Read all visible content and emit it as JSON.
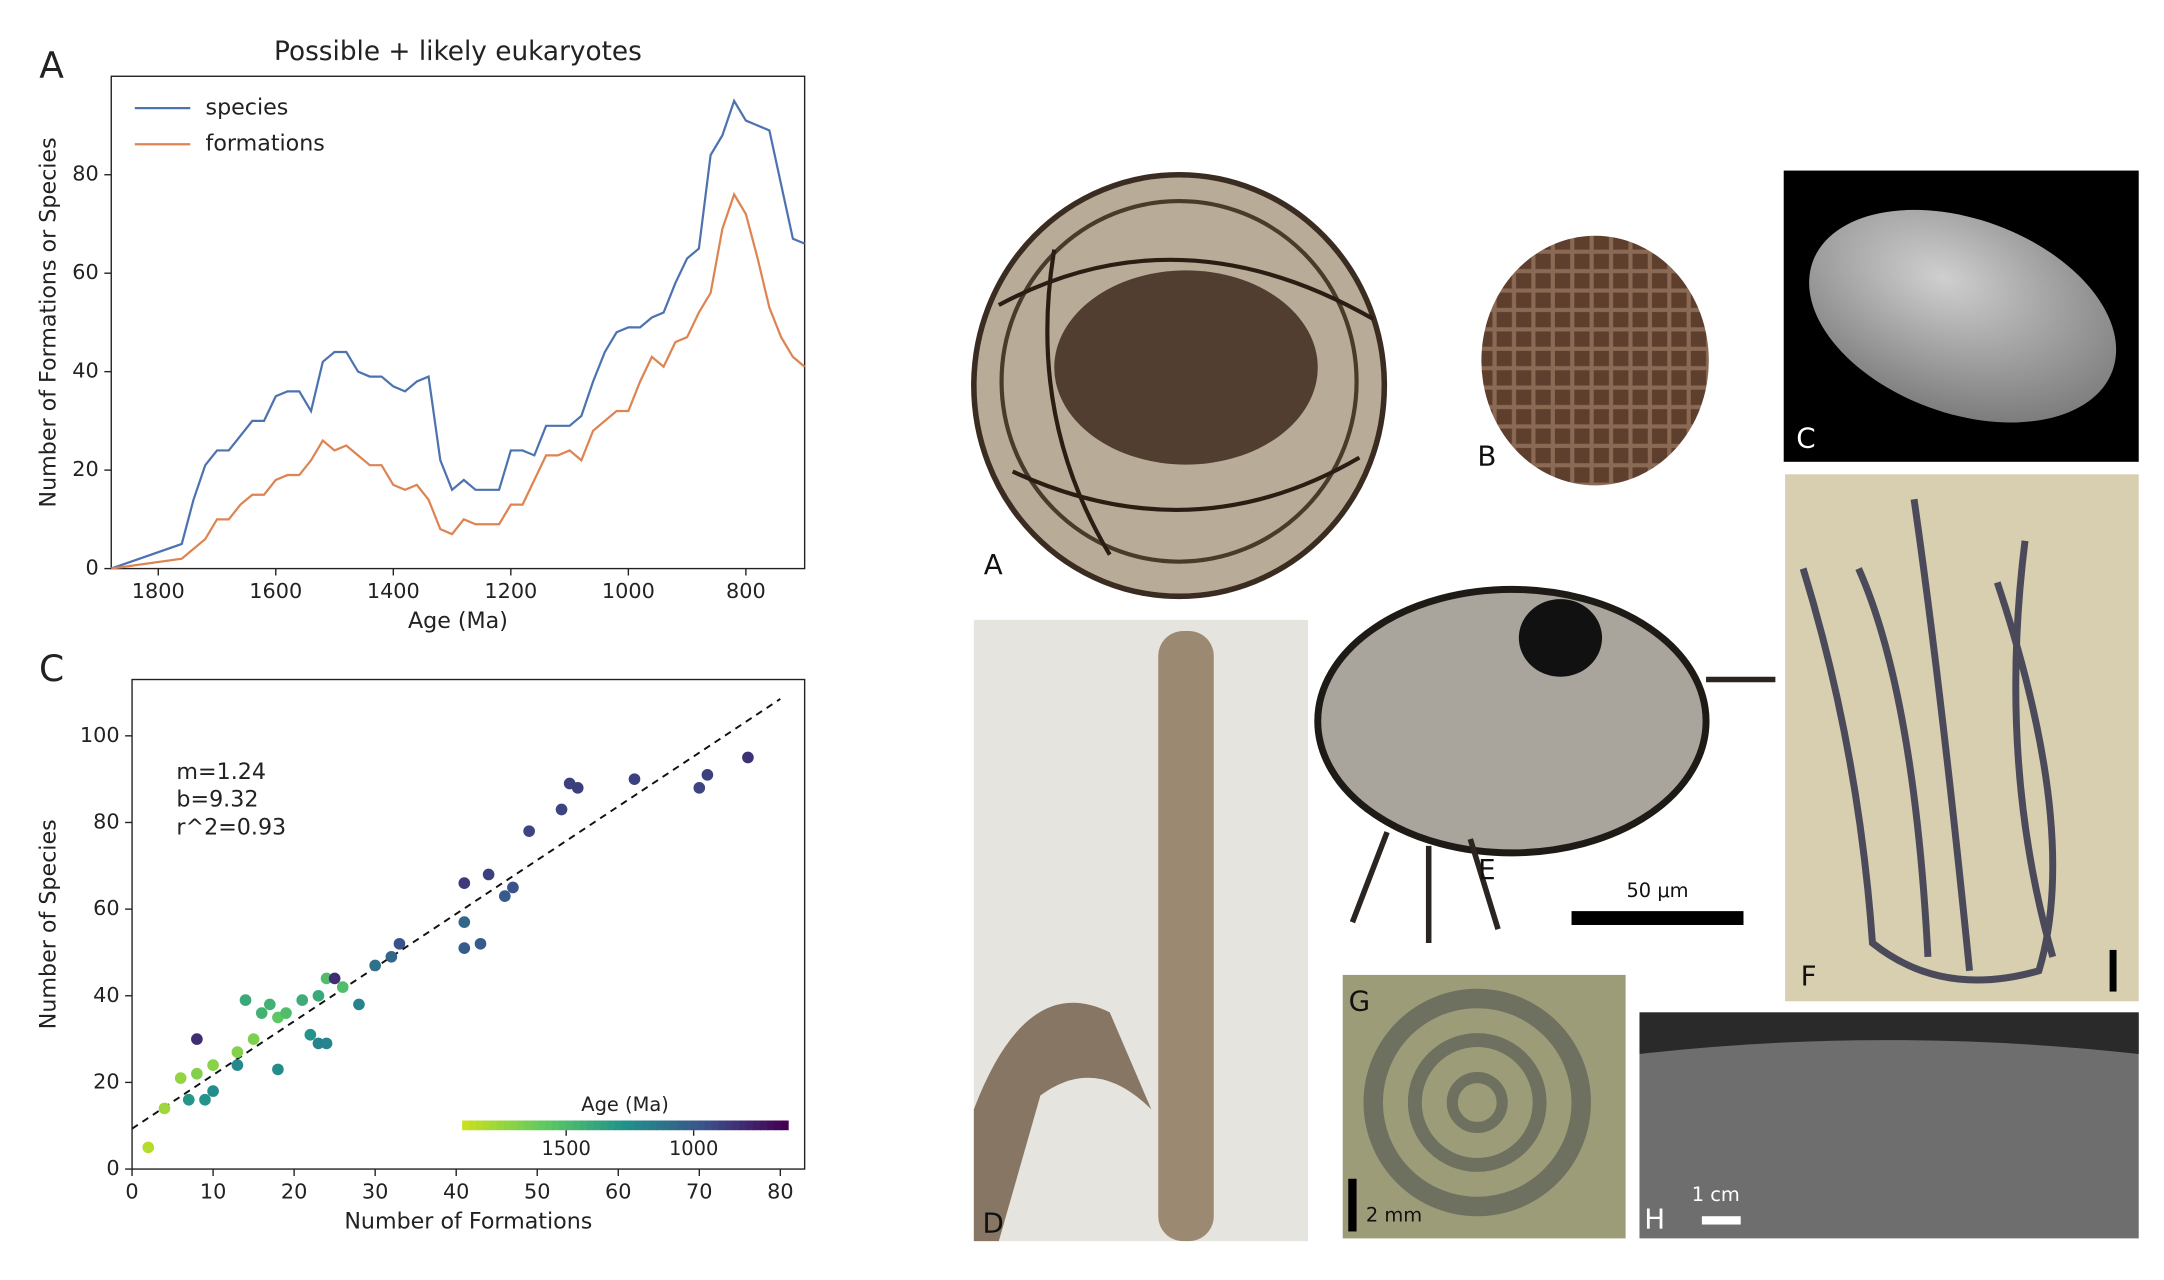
{
  "chart_data": [
    {
      "type": "line",
      "panel_label": "A",
      "title": "Possible + likely eukaryotes",
      "xlabel": "Age (Ma)",
      "ylabel": "Number of Formations or Species",
      "x": [
        1880,
        1760,
        1740,
        1720,
        1700,
        1680,
        1660,
        1640,
        1620,
        1600,
        1580,
        1560,
        1540,
        1520,
        1500,
        1480,
        1460,
        1440,
        1420,
        1400,
        1380,
        1360,
        1340,
        1320,
        1300,
        1280,
        1260,
        1240,
        1220,
        1200,
        1180,
        1160,
        1140,
        1120,
        1100,
        1080,
        1060,
        1040,
        1020,
        1000,
        980,
        960,
        940,
        920,
        900,
        880,
        860,
        840,
        820,
        800,
        780,
        760,
        740,
        720,
        700
      ],
      "series": [
        {
          "name": "species",
          "color": "#4c72b0",
          "values": [
            0,
            5,
            14,
            21,
            24,
            24,
            27,
            30,
            30,
            35,
            36,
            36,
            32,
            42,
            44,
            44,
            40,
            39,
            39,
            37,
            36,
            38,
            39,
            22,
            16,
            18,
            16,
            16,
            16,
            24,
            24,
            23,
            29,
            29,
            29,
            31,
            38,
            44,
            48,
            49,
            49,
            51,
            52,
            58,
            63,
            65,
            84,
            88,
            95,
            91,
            90,
            89,
            78,
            67,
            66
          ]
        },
        {
          "name": "formations",
          "color": "#dd8452",
          "values": [
            0,
            2,
            4,
            6,
            10,
            10,
            13,
            15,
            15,
            18,
            19,
            19,
            22,
            26,
            24,
            25,
            23,
            21,
            21,
            17,
            16,
            17,
            14,
            8,
            7,
            10,
            9,
            9,
            9,
            13,
            13,
            18,
            23,
            23,
            24,
            22,
            28,
            30,
            32,
            32,
            38,
            43,
            41,
            46,
            47,
            52,
            56,
            69,
            76,
            72,
            63,
            53,
            47,
            43,
            41
          ]
        }
      ],
      "xlim": [
        1880,
        700
      ],
      "xticks": [
        1800,
        1600,
        1400,
        1200,
        1000,
        800
      ],
      "ylim": [
        0,
        100
      ],
      "yticks": [
        0,
        20,
        40,
        60,
        80
      ],
      "legend": "upper left"
    },
    {
      "type": "scatter",
      "panel_label": "C",
      "xlabel": "Number of Formations",
      "ylabel": "Number of Species",
      "x": [
        2,
        4,
        6,
        7,
        8,
        8,
        9,
        10,
        10,
        13,
        13,
        14,
        15,
        16,
        17,
        18,
        18,
        19,
        21,
        22,
        23,
        23,
        24,
        24,
        25,
        26,
        28,
        30,
        32,
        33,
        41,
        41,
        41,
        43,
        44,
        46,
        47,
        49,
        53,
        54,
        55,
        62,
        70,
        71,
        76
      ],
      "values": [
        5,
        14,
        21,
        16,
        22,
        30,
        16,
        18,
        24,
        24,
        27,
        39,
        30,
        36,
        38,
        23,
        35,
        36,
        39,
        31,
        29,
        40,
        29,
        44,
        44,
        42,
        38,
        47,
        49,
        52,
        66,
        57,
        51,
        52,
        68,
        63,
        65,
        78,
        83,
        89,
        88,
        90,
        88,
        91,
        95
      ],
      "color_values": [
        1850,
        1780,
        1750,
        1300,
        1700,
        800,
        1280,
        1250,
        1720,
        1230,
        1700,
        1400,
        1680,
        1450,
        1450,
        1250,
        1580,
        1520,
        1420,
        1280,
        1200,
        1400,
        1200,
        1520,
        800,
        1520,
        1200,
        1100,
        1050,
        950,
        850,
        1050,
        1000,
        1000,
        880,
        1000,
        950,
        900,
        900,
        880,
        870,
        880,
        900,
        880,
        820
      ],
      "colormap": [
        "#c7e020",
        "#5ec962",
        "#21918c",
        "#3b528b",
        "#440154"
      ],
      "colorbar_label": "Age (Ma)",
      "clim": [
        1908,
        630
      ],
      "colorbar_ticks": [
        1500,
        1000
      ],
      "fit": {
        "m": 1.24,
        "b": 9.32,
        "xrange": [
          0,
          80
        ]
      },
      "annotations": [
        "m=1.24",
        "b=9.32",
        "r^2=0.93"
      ],
      "xlim": [
        0,
        83
      ],
      "xticks": [
        0,
        10,
        20,
        30,
        40,
        50,
        60,
        70,
        80
      ],
      "ylim": [
        0,
        113
      ],
      "yticks": [
        0,
        20,
        40,
        60,
        80,
        100
      ]
    }
  ],
  "photos": [
    "A",
    "B",
    "C",
    "D",
    "E",
    "F",
    "G",
    "H"
  ],
  "scale_bars": [
    "50 μm",
    "2 mm",
    "1 cm"
  ]
}
